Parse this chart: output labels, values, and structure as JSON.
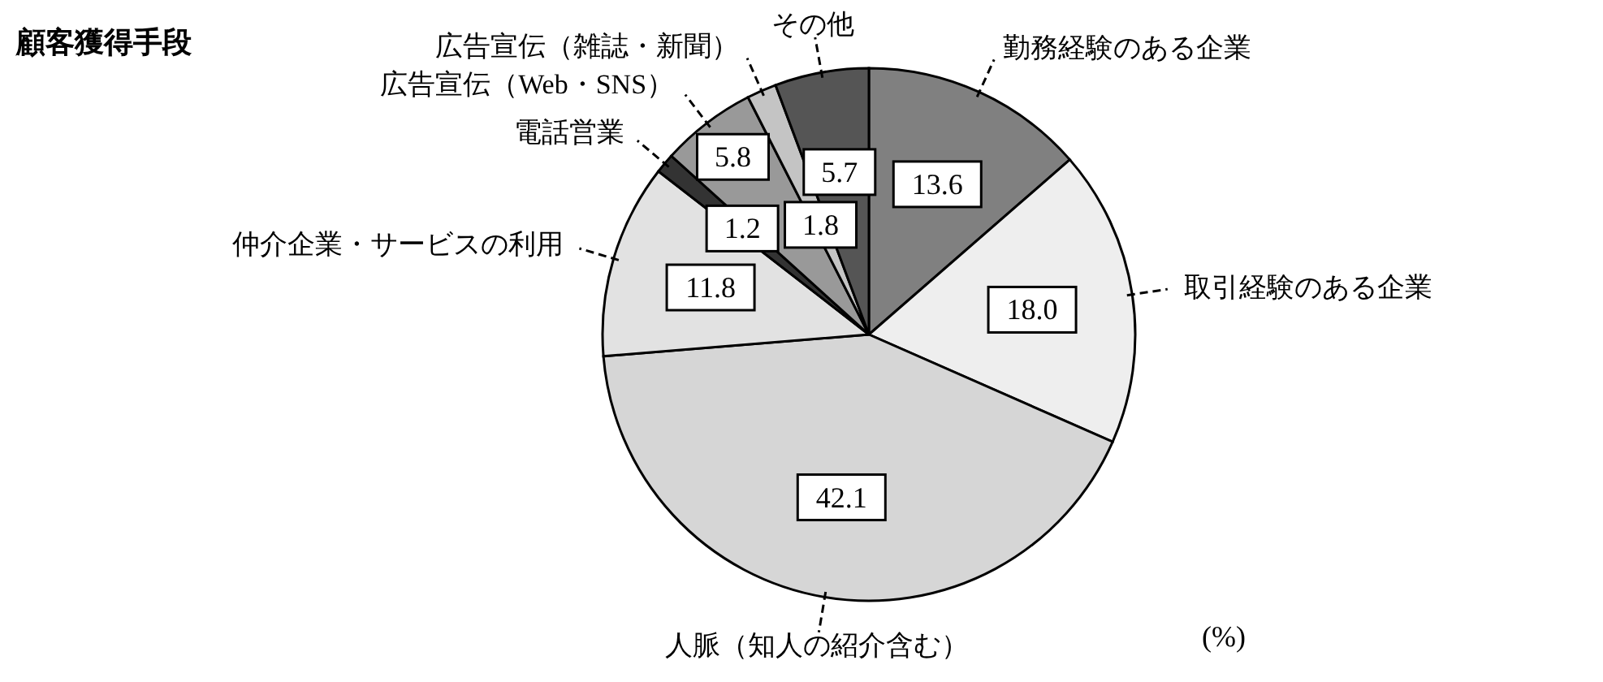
{
  "chart_data": {
    "type": "pie",
    "title": "顧客獲得手段",
    "categories": [
      "勤務経験のある企業",
      "取引経験のある企業",
      "人脈（知人の紹介含む）",
      "仲介企業・サービスの利用",
      "電話営業",
      "広告宣伝（Web・SNS）",
      "広告宣伝（雑誌・新聞）",
      "その他"
    ],
    "values": [
      13.6,
      18.0,
      42.1,
      11.8,
      1.2,
      5.8,
      1.8,
      5.7
    ],
    "value_labels": [
      "13.6",
      "18.0",
      "42.1",
      "11.8",
      "1.2",
      "5.8",
      "1.8",
      "5.7"
    ],
    "colors": [
      "#808080",
      "#eeeeee",
      "#d6d6d6",
      "#e2e2e2",
      "#333333",
      "#999999",
      "#c4c4c4",
      "#555555"
    ],
    "annotations": [
      "(%)"
    ],
    "legend": false
  }
}
